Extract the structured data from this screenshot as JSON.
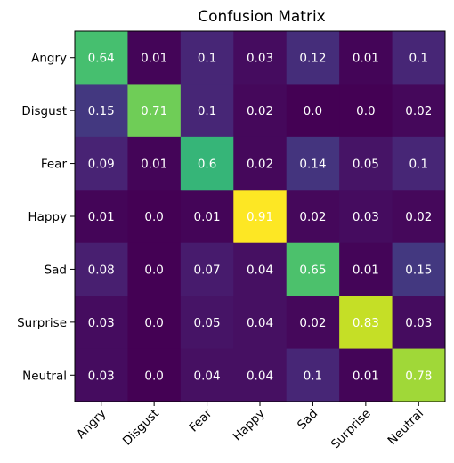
{
  "chart_data": {
    "type": "heatmap",
    "title": "Confusion Matrix",
    "xlabel": "",
    "ylabel": "",
    "row_labels": [
      "Angry",
      "Disgust",
      "Fear",
      "Happy",
      "Sad",
      "Surprise",
      "Neutral"
    ],
    "col_labels": [
      "Angry",
      "Disgust",
      "Fear",
      "Happy",
      "Sad",
      "Surprise",
      "Neutral"
    ],
    "values": [
      [
        0.64,
        0.01,
        0.1,
        0.03,
        0.12,
        0.01,
        0.1
      ],
      [
        0.15,
        0.71,
        0.1,
        0.02,
        0.0,
        0.0,
        0.02
      ],
      [
        0.09,
        0.01,
        0.6,
        0.02,
        0.14,
        0.05,
        0.1
      ],
      [
        0.01,
        0.0,
        0.01,
        0.91,
        0.02,
        0.03,
        0.02
      ],
      [
        0.08,
        0.0,
        0.07,
        0.04,
        0.65,
        0.01,
        0.15
      ],
      [
        0.03,
        0.0,
        0.05,
        0.04,
        0.02,
        0.83,
        0.03
      ],
      [
        0.03,
        0.0,
        0.04,
        0.04,
        0.1,
        0.01,
        0.78
      ]
    ],
    "value_labels": [
      [
        "0.64",
        "0.01",
        "0.1",
        "0.03",
        "0.12",
        "0.01",
        "0.1"
      ],
      [
        "0.15",
        "0.71",
        "0.1",
        "0.02",
        "0.0",
        "0.0",
        "0.02"
      ],
      [
        "0.09",
        "0.01",
        "0.6",
        "0.02",
        "0.14",
        "0.05",
        "0.1"
      ],
      [
        "0.01",
        "0.0",
        "0.01",
        "0.91",
        "0.02",
        "0.03",
        "0.02"
      ],
      [
        "0.08",
        "0.0",
        "0.07",
        "0.04",
        "0.65",
        "0.01",
        "0.15"
      ],
      [
        "0.03",
        "0.0",
        "0.05",
        "0.04",
        "0.02",
        "0.83",
        "0.03"
      ],
      [
        "0.03",
        "0.0",
        "0.04",
        "0.04",
        "0.1",
        "0.01",
        "0.78"
      ]
    ],
    "colormap": "viridis",
    "cell_text_color": "#ffffff",
    "grid": false,
    "legend": "none"
  }
}
